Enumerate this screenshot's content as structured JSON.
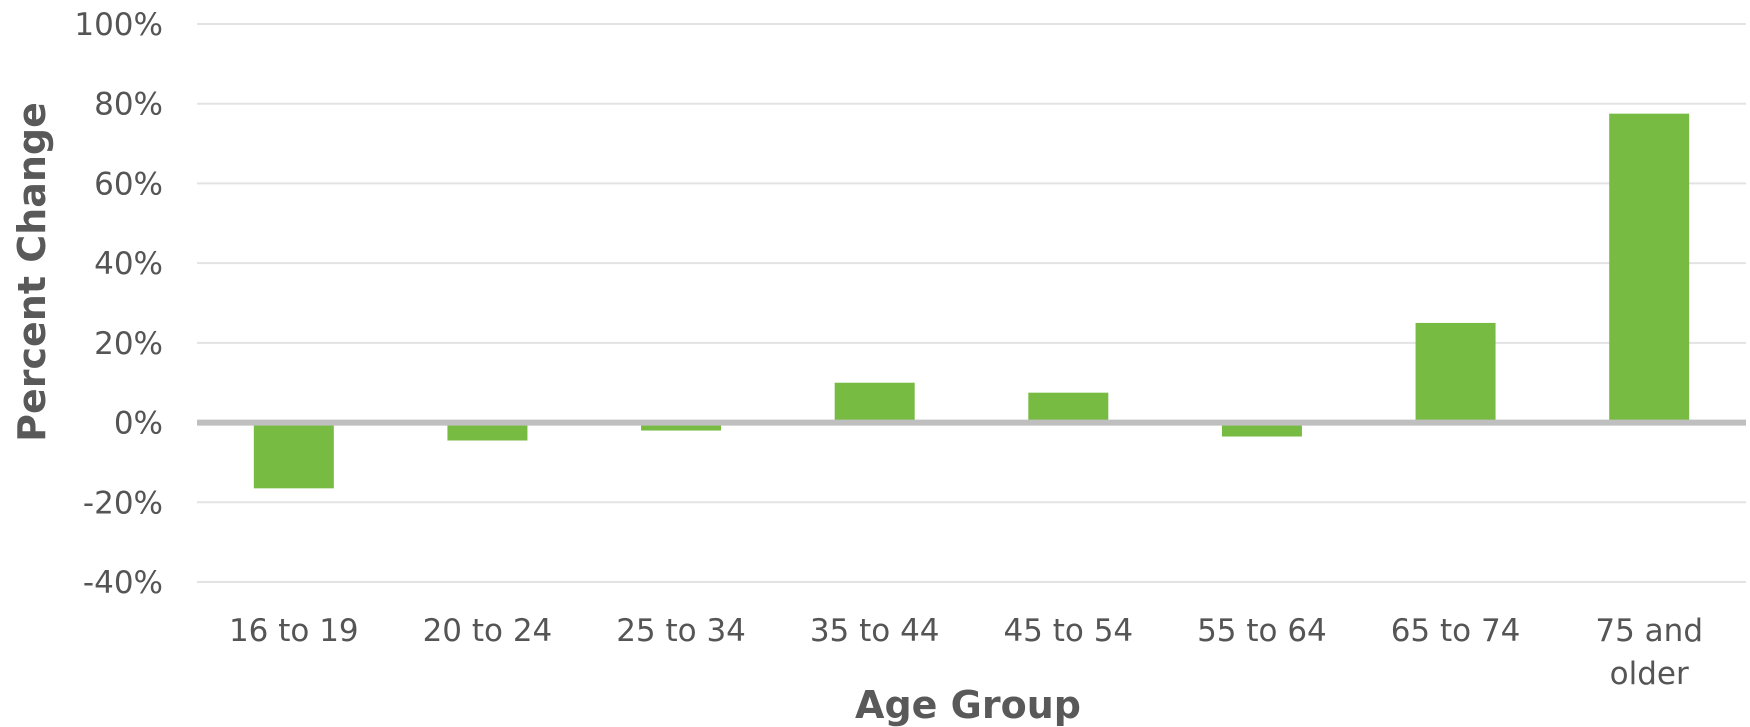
{
  "chart_data": {
    "type": "bar",
    "categories": [
      "16 to 19",
      "20 to 24",
      "25 to 34",
      "35 to 44",
      "45 to 54",
      "55 to 64",
      "65 to 74",
      "75 and older"
    ],
    "category_lines": [
      [
        "16 to 19"
      ],
      [
        "20 to 24"
      ],
      [
        "25 to 34"
      ],
      [
        "35 to 44"
      ],
      [
        "45 to 54"
      ],
      [
        "55 to 64"
      ],
      [
        "65 to 74"
      ],
      [
        "75 and",
        "older"
      ]
    ],
    "values": [
      -16.5,
      -4.5,
      -2,
      10,
      7.5,
      -3.5,
      25,
      77.5
    ],
    "xlabel": "Age Group",
    "ylabel": "Percent Change",
    "ylim": [
      -40,
      100
    ],
    "yticks": [
      -40,
      -20,
      0,
      20,
      40,
      60,
      80,
      100
    ],
    "ytick_labels": [
      "-40%",
      "-20%",
      "0%",
      "20%",
      "40%",
      "60%",
      "80%",
      "100%"
    ],
    "grid": true,
    "bar_color": "#78bb43"
  }
}
